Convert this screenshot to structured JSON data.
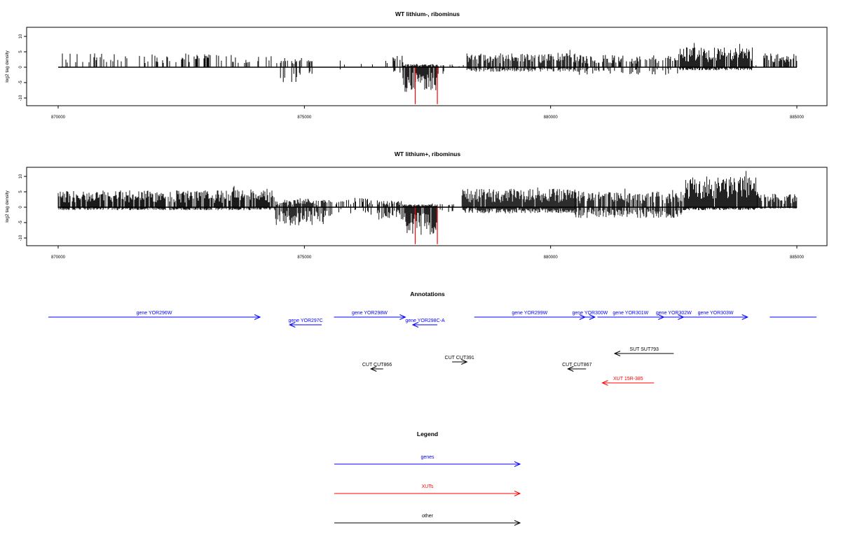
{
  "chart_data": [
    {
      "type": "bar",
      "title": "WT lithium-, ribominus",
      "ylabel": "log2 tag density",
      "xlim": [
        870000,
        885000
      ],
      "ylim": [
        -12,
        13
      ],
      "xticks": [
        870000,
        875000,
        880000,
        885000
      ],
      "xtick_labels": [
        "870000",
        "875000",
        "880000",
        "885000"
      ],
      "yticks": [
        10,
        5,
        0,
        -5,
        -10
      ],
      "ytick_labels": [
        "10",
        "5",
        "0",
        "-5",
        "-10"
      ],
      "bar_color": "#000000",
      "highlight_color": "#ff0000",
      "segments": [
        {
          "x": [
            870000,
            873200
          ],
          "mode": "sparse",
          "pos_max": 4.5,
          "neg_max": 0,
          "density": 0.28
        },
        {
          "x": [
            873200,
            874500
          ],
          "mode": "sparse",
          "pos_max": 4,
          "neg_max": 0,
          "density": 0.15
        },
        {
          "x": [
            874500,
            875300
          ],
          "mode": "sparse",
          "pos_max": 3,
          "neg_max": -5,
          "density": 0.4
        },
        {
          "x": [
            875300,
            876800
          ],
          "mode": "sparse",
          "pos_max": 2.5,
          "neg_max": -1,
          "density": 0.08
        },
        {
          "x": [
            876800,
            877000
          ],
          "mode": "sparse",
          "pos_max": 4,
          "neg_max": -2,
          "density": 0.4
        },
        {
          "x": [
            877000,
            877700
          ],
          "mode": "dense",
          "pos_max": 1,
          "neg_max": -8,
          "density": 1
        },
        {
          "x": [
            877700,
            878300
          ],
          "mode": "sparse",
          "pos_max": 1,
          "neg_max": -3,
          "density": 0.2
        },
        {
          "x": [
            878300,
            880500
          ],
          "mode": "dense",
          "pos_max": 4.5,
          "neg_max": -1.5,
          "density": 0.8
        },
        {
          "x": [
            880500,
            882600
          ],
          "mode": "sparse",
          "pos_max": 4,
          "neg_max": -2.5,
          "density": 0.5
        },
        {
          "x": [
            882600,
            884100
          ],
          "mode": "dense",
          "pos_max": 6.5,
          "neg_max": -1,
          "density": 1
        },
        {
          "x": [
            884100,
            884300
          ],
          "mode": "sparse",
          "pos_max": 1,
          "neg_max": 0,
          "density": 0.1
        },
        {
          "x": [
            884300,
            885000
          ],
          "mode": "sparse",
          "pos_max": 4.5,
          "neg_max": 0,
          "density": 0.5
        }
      ],
      "highlights": [
        {
          "x": 877250,
          "y": -12
        },
        {
          "x": 877700,
          "y": -12
        }
      ]
    },
    {
      "type": "bar",
      "title": "WT lithium+, ribominus",
      "ylabel": "log2 tag density",
      "xlim": [
        870000,
        885000
      ],
      "ylim": [
        -12,
        13
      ],
      "xticks": [
        870000,
        875000,
        880000,
        885000
      ],
      "xtick_labels": [
        "870000",
        "875000",
        "880000",
        "885000"
      ],
      "yticks": [
        10,
        5,
        0,
        -5,
        -10
      ],
      "ytick_labels": [
        "10",
        "5",
        "0",
        "-5",
        "-10"
      ],
      "bar_color": "#000000",
      "highlight_color": "#ff0000",
      "segments": [
        {
          "x": [
            870000,
            874400
          ],
          "mode": "dense",
          "pos_max": 5.5,
          "neg_max": -1,
          "density": 0.9
        },
        {
          "x": [
            874400,
            875400
          ],
          "mode": "dense",
          "pos_max": 2.5,
          "neg_max": -6,
          "density": 0.9
        },
        {
          "x": [
            875400,
            876500
          ],
          "mode": "sparse",
          "pos_max": 3,
          "neg_max": -3,
          "density": 0.4
        },
        {
          "x": [
            876500,
            877000
          ],
          "mode": "dense",
          "pos_max": 2,
          "neg_max": -4,
          "density": 0.8
        },
        {
          "x": [
            877000,
            877700
          ],
          "mode": "dense",
          "pos_max": 1,
          "neg_max": -9,
          "density": 1
        },
        {
          "x": [
            877700,
            878200
          ],
          "mode": "sparse",
          "pos_max": 1,
          "neg_max": -2,
          "density": 0.3
        },
        {
          "x": [
            878200,
            880500
          ],
          "mode": "dense",
          "pos_max": 6,
          "neg_max": -2,
          "density": 1
        },
        {
          "x": [
            880500,
            882700
          ],
          "mode": "dense",
          "pos_max": 5,
          "neg_max": -3.5,
          "density": 0.85
        },
        {
          "x": [
            882700,
            884200
          ],
          "mode": "dense",
          "pos_max": 10,
          "neg_max": -1,
          "density": 1
        },
        {
          "x": [
            884200,
            885000
          ],
          "mode": "dense",
          "pos_max": 4.5,
          "neg_max": -0.5,
          "density": 0.8
        }
      ],
      "highlights": [
        {
          "x": 877250,
          "y": -12
        },
        {
          "x": 877700,
          "y": -12
        }
      ]
    }
  ],
  "annotations": {
    "title": "Annotations",
    "colors": {
      "gene": "#0000ff",
      "xut": "#ff0000",
      "other": "#000000"
    },
    "features": [
      {
        "label": "gene YOR296W",
        "kind": "gene",
        "strand": "+",
        "start": 869800,
        "end": 874100,
        "row": 0
      },
      {
        "label": "gene YOR297C",
        "kind": "gene",
        "strand": "-",
        "start": 874700,
        "end": 875350,
        "row": 1
      },
      {
        "label": "gene YOR298W",
        "kind": "gene",
        "strand": "+",
        "start": 875600,
        "end": 877050,
        "row": 0
      },
      {
        "label": "gene YOR298C-A",
        "kind": "gene",
        "strand": "-",
        "start": 877200,
        "end": 877700,
        "row": 1
      },
      {
        "label": "gene YOR299W",
        "kind": "gene",
        "strand": "+",
        "start": 878450,
        "end": 880700,
        "row": 0
      },
      {
        "label": "gene YOR300W",
        "kind": "gene",
        "strand": "+",
        "start": 880700,
        "end": 880900,
        "row": 0
      },
      {
        "label": "gene YOR301W",
        "kind": "gene",
        "strand": "+",
        "start": 880950,
        "end": 882300,
        "row": 0
      },
      {
        "label": "gene YOR302W",
        "kind": "gene",
        "strand": "+",
        "start": 882300,
        "end": 882700,
        "row": 0
      },
      {
        "label": "gene YOR303W",
        "kind": "gene",
        "strand": "+",
        "start": 882700,
        "end": 884000,
        "row": 0
      },
      {
        "label": "",
        "kind": "gene",
        "strand": "+",
        "start": 884450,
        "end": 885400,
        "row": 0
      },
      {
        "label": "SUT SUT793",
        "kind": "other",
        "strand": "-",
        "start": 881300,
        "end": 882500,
        "row": 2
      },
      {
        "label": "CUT CUT391",
        "kind": "other",
        "strand": "+",
        "start": 878000,
        "end": 878300,
        "row": 3
      },
      {
        "label": "CUT CUT866",
        "kind": "other",
        "strand": "-",
        "start": 876350,
        "end": 876600,
        "row": 4
      },
      {
        "label": "CUT CUT867",
        "kind": "other",
        "strand": "-",
        "start": 880350,
        "end": 880720,
        "row": 4
      },
      {
        "label": "XUT 15R-385",
        "kind": "xut",
        "strand": "-",
        "start": 881050,
        "end": 882100,
        "row": 5
      }
    ]
  },
  "legend": {
    "title": "Legend",
    "items": [
      {
        "label": "genes",
        "color": "#0000ff"
      },
      {
        "label": "XUTs",
        "color": "#ff0000"
      },
      {
        "label": "other",
        "color": "#000000"
      }
    ]
  }
}
